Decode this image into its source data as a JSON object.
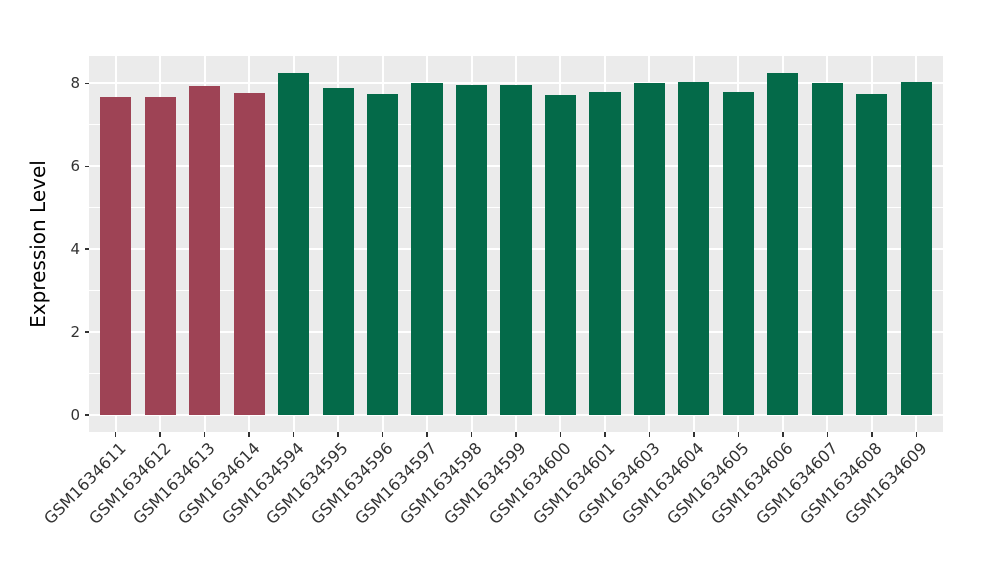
{
  "chart_data": {
    "type": "bar",
    "title": "",
    "ylabel": "Expression Level",
    "xlabel": "",
    "categories": [
      "GSM1634611",
      "GSM1634612",
      "GSM1634613",
      "GSM1634614",
      "GSM1634594",
      "GSM1634595",
      "GSM1634596",
      "GSM1634597",
      "GSM1634598",
      "GSM1634599",
      "GSM1634600",
      "GSM1634601",
      "GSM1634603",
      "GSM1634604",
      "GSM1634605",
      "GSM1634606",
      "GSM1634607",
      "GSM1634608",
      "GSM1634609"
    ],
    "values": [
      7.68,
      7.68,
      7.93,
      7.76,
      8.24,
      7.9,
      7.74,
      8.01,
      7.95,
      7.95,
      7.73,
      7.8,
      8.02,
      8.03,
      7.79,
      8.24,
      8.02,
      7.74,
      8.03
    ],
    "bar_group_index": [
      0,
      0,
      0,
      0,
      1,
      1,
      1,
      1,
      1,
      1,
      1,
      1,
      1,
      1,
      1,
      1,
      1,
      1,
      1
    ],
    "group_colors": [
      "#9E4355",
      "#046A49"
    ],
    "yticks": [
      "0",
      "2",
      "4",
      "6",
      "8"
    ],
    "ytick_values": [
      0,
      2,
      4,
      6,
      8
    ],
    "yminor_values": [
      1,
      3,
      5,
      7
    ],
    "ylim": [
      -0.41,
      8.66
    ],
    "legend": "none",
    "grid": "horizontal major+minor, vertical major per category",
    "panel_bg": "#EBEBEB",
    "grid_color": "#FFFFFF",
    "axis_text_color": "#333333",
    "axis_title_color": "#000000",
    "tick_mark_color": "#333333",
    "bar_width_frac": 0.7
  }
}
